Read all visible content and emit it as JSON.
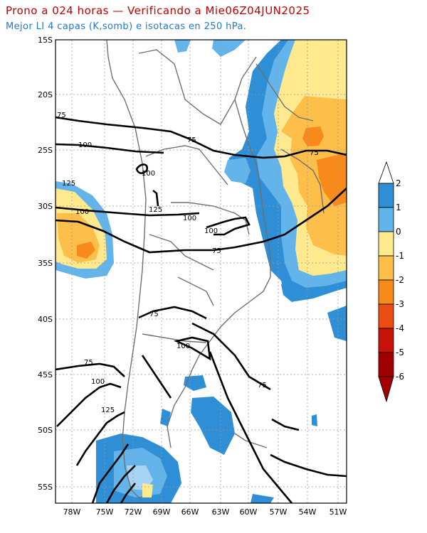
{
  "header": {
    "title": "Prono a 024 horas — Verificando a Mie06Z04JUN2025",
    "subtitle": "Mejor LI 4 capas (K,somb) e isotacas en 250 hPa."
  },
  "map": {
    "lat_labels": [
      "15S",
      "20S",
      "25S",
      "30S",
      "35S",
      "40S",
      "45S",
      "50S",
      "55S"
    ],
    "lon_labels": [
      "78W",
      "75W",
      "72W",
      "69W",
      "66W",
      "63W",
      "60W",
      "57W",
      "54W",
      "51W"
    ],
    "isotach_labels": [
      "75",
      "100",
      "100",
      "125",
      "100",
      "125",
      "100",
      "100",
      "75",
      "75",
      "75",
      "100",
      "75",
      "100",
      "125",
      "75",
      "75"
    ]
  },
  "legend": {
    "ticks": [
      "2",
      "1",
      "0",
      "-1",
      "-2",
      "-3",
      "-4",
      "-5",
      "-6"
    ],
    "colors": [
      "#ffffff",
      "#2f8fd6",
      "#62b4ea",
      "#a7d4f4",
      "#ffe98e",
      "#fdbf4a",
      "#f88a1c",
      "#ec4d10",
      "#c81408",
      "#a00000"
    ]
  }
}
